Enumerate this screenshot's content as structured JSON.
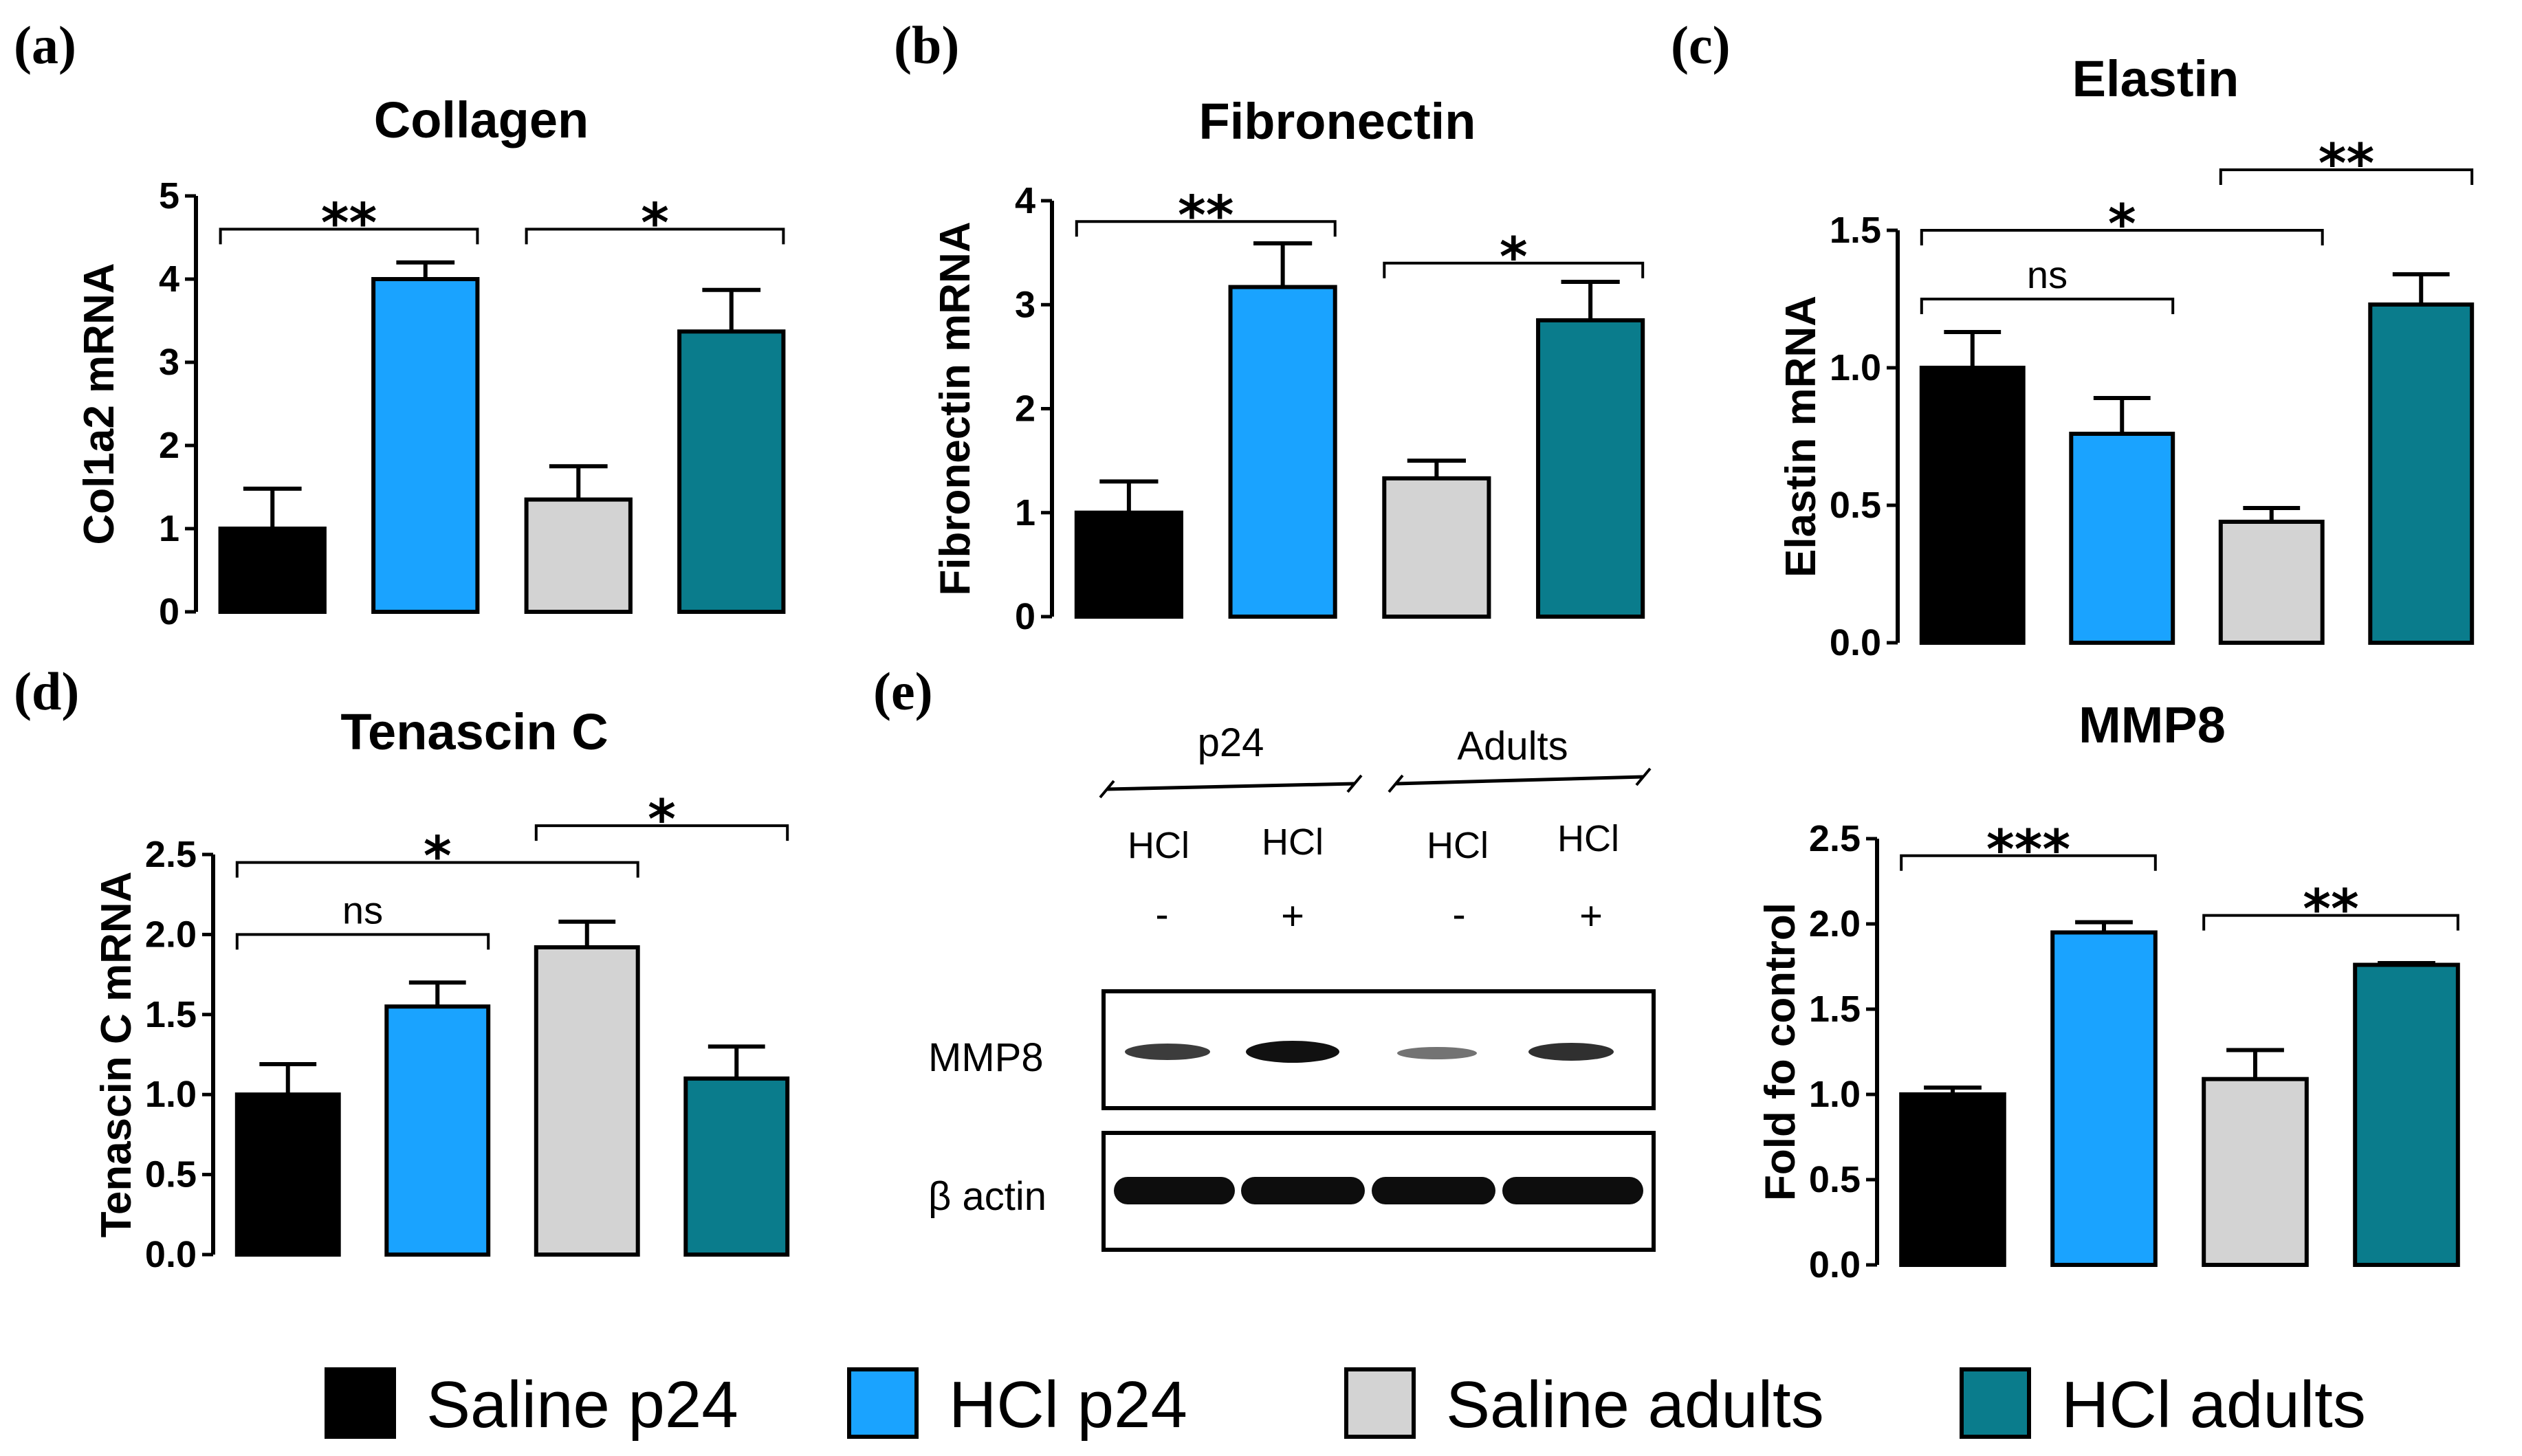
{
  "colors": {
    "saline_p24": "#000000",
    "hcl_p24": "#1aa3ff",
    "saline_adults": "#d3d3d3",
    "hcl_adults": "#0a7c8c"
  },
  "panels": {
    "a": "(a)",
    "b": "(b)",
    "c": "(c)",
    "d": "(d)",
    "e": "(e)"
  },
  "chart_data": [
    {
      "id": "a",
      "type": "bar",
      "title": "Collagen",
      "ylabel": "Col1a2 mRNA",
      "categories": [
        "Saline p24",
        "HCl p24",
        "Saline adults",
        "HCl adults"
      ],
      "values": [
        1.0,
        4.0,
        1.35,
        3.37
      ],
      "errors": [
        0.48,
        0.2,
        0.4,
        0.5
      ],
      "ylim": [
        0,
        5
      ],
      "ticks": [
        "0",
        "1",
        "2",
        "3",
        "4",
        "5"
      ],
      "brackets": [
        {
          "from": 0,
          "to": 1,
          "y": 4.6,
          "label": "**"
        },
        {
          "from": 2,
          "to": 3,
          "y": 4.6,
          "label": "*"
        }
      ]
    },
    {
      "id": "b",
      "type": "bar",
      "title": "Fibronectin",
      "ylabel": "Fibronectin mRNA",
      "categories": [
        "Saline p24",
        "HCl p24",
        "Saline adults",
        "HCl adults"
      ],
      "values": [
        1.0,
        3.17,
        1.33,
        2.85
      ],
      "errors": [
        0.3,
        0.42,
        0.17,
        0.37
      ],
      "ylim": [
        0,
        4
      ],
      "ticks": [
        "0",
        "1",
        "2",
        "3",
        "4"
      ],
      "brackets": [
        {
          "from": 0,
          "to": 1,
          "y": 3.8,
          "label": "**"
        },
        {
          "from": 2,
          "to": 3,
          "y": 3.4,
          "label": "*"
        }
      ]
    },
    {
      "id": "c",
      "type": "bar",
      "title": "Elastin",
      "ylabel": "Elastin mRNA",
      "categories": [
        "Saline p24",
        "HCl p24",
        "Saline adults",
        "HCl adults"
      ],
      "values": [
        1.0,
        0.76,
        0.44,
        1.23
      ],
      "errors": [
        0.13,
        0.13,
        0.05,
        0.11
      ],
      "ylim": [
        0,
        1.5
      ],
      "ticks": [
        "0.0",
        "0.5",
        "1.0",
        "1.5"
      ],
      "brackets": [
        {
          "from": 0,
          "to": 1,
          "y": 1.25,
          "label": "ns"
        },
        {
          "from": 0,
          "to": 2,
          "y": 1.5,
          "label": "*"
        },
        {
          "from": 2,
          "to": 3,
          "y": 1.72,
          "label": "**"
        }
      ]
    },
    {
      "id": "d",
      "type": "bar",
      "title": "Tenascin  C",
      "ylabel": "Tenascin  C mRNA",
      "categories": [
        "Saline p24",
        "HCl p24",
        "Saline adults",
        "HCl adults"
      ],
      "values": [
        1.0,
        1.55,
        1.92,
        1.1
      ],
      "errors": [
        0.19,
        0.15,
        0.16,
        0.2
      ],
      "ylim": [
        0,
        2.5
      ],
      "ticks": [
        "0.0",
        "0.5",
        "1.0",
        "1.5",
        "2.0",
        "2.5"
      ],
      "brackets": [
        {
          "from": 0,
          "to": 1,
          "y": 2.0,
          "label": "ns"
        },
        {
          "from": 0,
          "to": 2,
          "y": 2.45,
          "label": "*"
        },
        {
          "from": 2,
          "to": 3,
          "y": 2.68,
          "label": "*"
        }
      ]
    },
    {
      "id": "mmp8",
      "type": "bar",
      "title": "MMP8",
      "ylabel": "Fold fo control",
      "categories": [
        "Saline p24",
        "HCl p24",
        "Saline adults",
        "HCl adults"
      ],
      "values": [
        1.0,
        1.95,
        1.09,
        1.76
      ],
      "errors": [
        0.04,
        0.06,
        0.17,
        0.01
      ],
      "ylim": [
        0,
        2.5
      ],
      "ticks": [
        "0.0",
        "0.5",
        "1.0",
        "1.5",
        "2.0",
        "2.5"
      ],
      "brackets": [
        {
          "from": 0,
          "to": 1,
          "y": 2.4,
          "label": "***"
        },
        {
          "from": 2,
          "to": 3,
          "y": 2.05,
          "label": "**"
        }
      ]
    }
  ],
  "blot": {
    "group_labels": [
      "p24",
      "Adults"
    ],
    "lane_labels": [
      "HCl",
      "HCl",
      "HCl",
      "HCl"
    ],
    "lane_signs": [
      "-",
      "+",
      "-",
      "+"
    ],
    "row_labels": [
      "MMP8",
      "β actin"
    ]
  },
  "legend": {
    "items": [
      {
        "label": "Saline p24",
        "color": "#000000"
      },
      {
        "label": "HCl p24",
        "color": "#1aa3ff"
      },
      {
        "label": "Saline adults",
        "color": "#d3d3d3"
      },
      {
        "label": "HCl adults",
        "color": "#0a7c8c"
      }
    ]
  }
}
